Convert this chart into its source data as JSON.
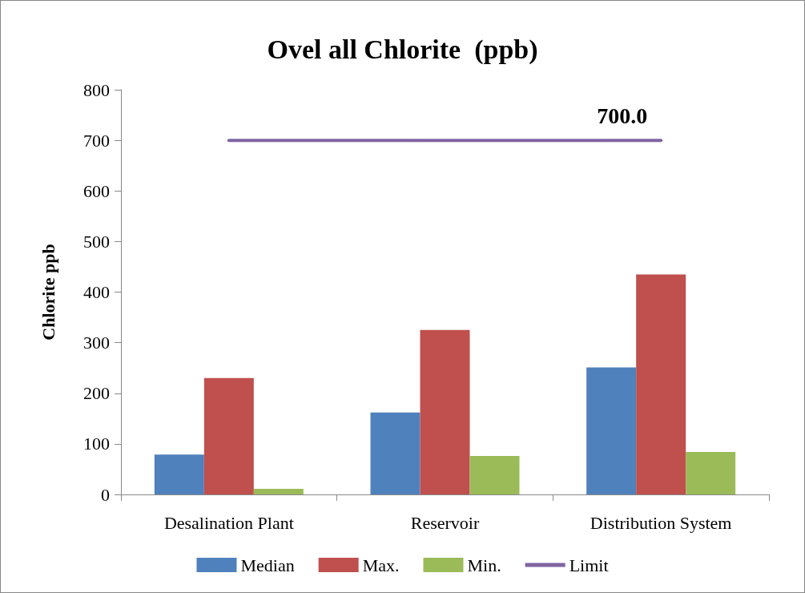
{
  "chart_data": {
    "type": "bar",
    "title": "Ovel all Chlorite  (ppb)",
    "ylabel": "Chlorite ppb",
    "categories": [
      "Desalination Plant",
      "Reservoir",
      "Distribution System"
    ],
    "series": [
      {
        "name": "Median",
        "color": "#4f81bd",
        "values": [
          79,
          162,
          251
        ]
      },
      {
        "name": "Max.",
        "color": "#c0504d",
        "values": [
          230,
          325,
          435
        ]
      },
      {
        "name": "Min.",
        "color": "#9bbb59",
        "values": [
          11,
          76,
          84
        ]
      },
      {
        "name": "Limit",
        "type": "line",
        "color": "#8064a2",
        "values": [
          700,
          700,
          700
        ],
        "value_labels": [
          null,
          null,
          "700.0"
        ]
      }
    ],
    "ylim": [
      0,
      800
    ],
    "yticks": [
      0,
      100,
      200,
      300,
      400,
      500,
      600,
      700,
      800
    ],
    "grid": false,
    "legend": "bottom",
    "marker": "none"
  }
}
